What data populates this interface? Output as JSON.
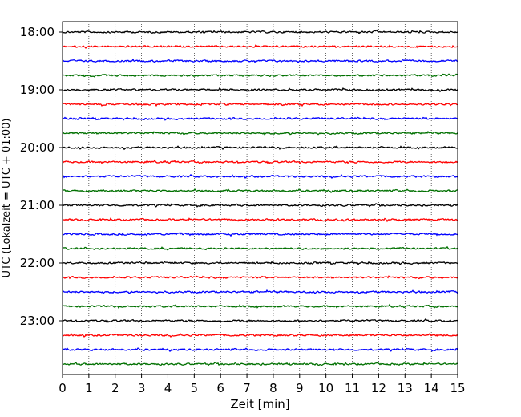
{
  "chart_data": {
    "type": "line",
    "title": "",
    "xlabel": "Zeit  [min]",
    "ylabel": "UTC (Lokalzeit = UTC + 01:00)",
    "xlim": [
      0,
      15
    ],
    "x_ticks": [
      "0",
      "1",
      "2",
      "3",
      "4",
      "5",
      "6",
      "7",
      "8",
      "9",
      "10",
      "11",
      "12",
      "13",
      "14",
      "15"
    ],
    "y_tick_labels": [
      "18:00",
      "19:00",
      "20:00",
      "21:00",
      "22:00",
      "23:00"
    ],
    "traces_per_hour": 4,
    "trace_start_times": [
      "18:00",
      "18:15",
      "18:30",
      "18:45",
      "19:00",
      "19:15",
      "19:30",
      "19:45",
      "20:00",
      "20:15",
      "20:30",
      "20:45",
      "21:00",
      "21:15",
      "21:30",
      "21:45",
      "22:00",
      "22:15",
      "22:30",
      "22:45",
      "23:00",
      "23:15",
      "23:30",
      "23:45"
    ],
    "trace_colors": [
      "#000000",
      "#ff0000",
      "#0000ff",
      "#007000"
    ],
    "grid": "vertical dotted",
    "legend": "none"
  }
}
